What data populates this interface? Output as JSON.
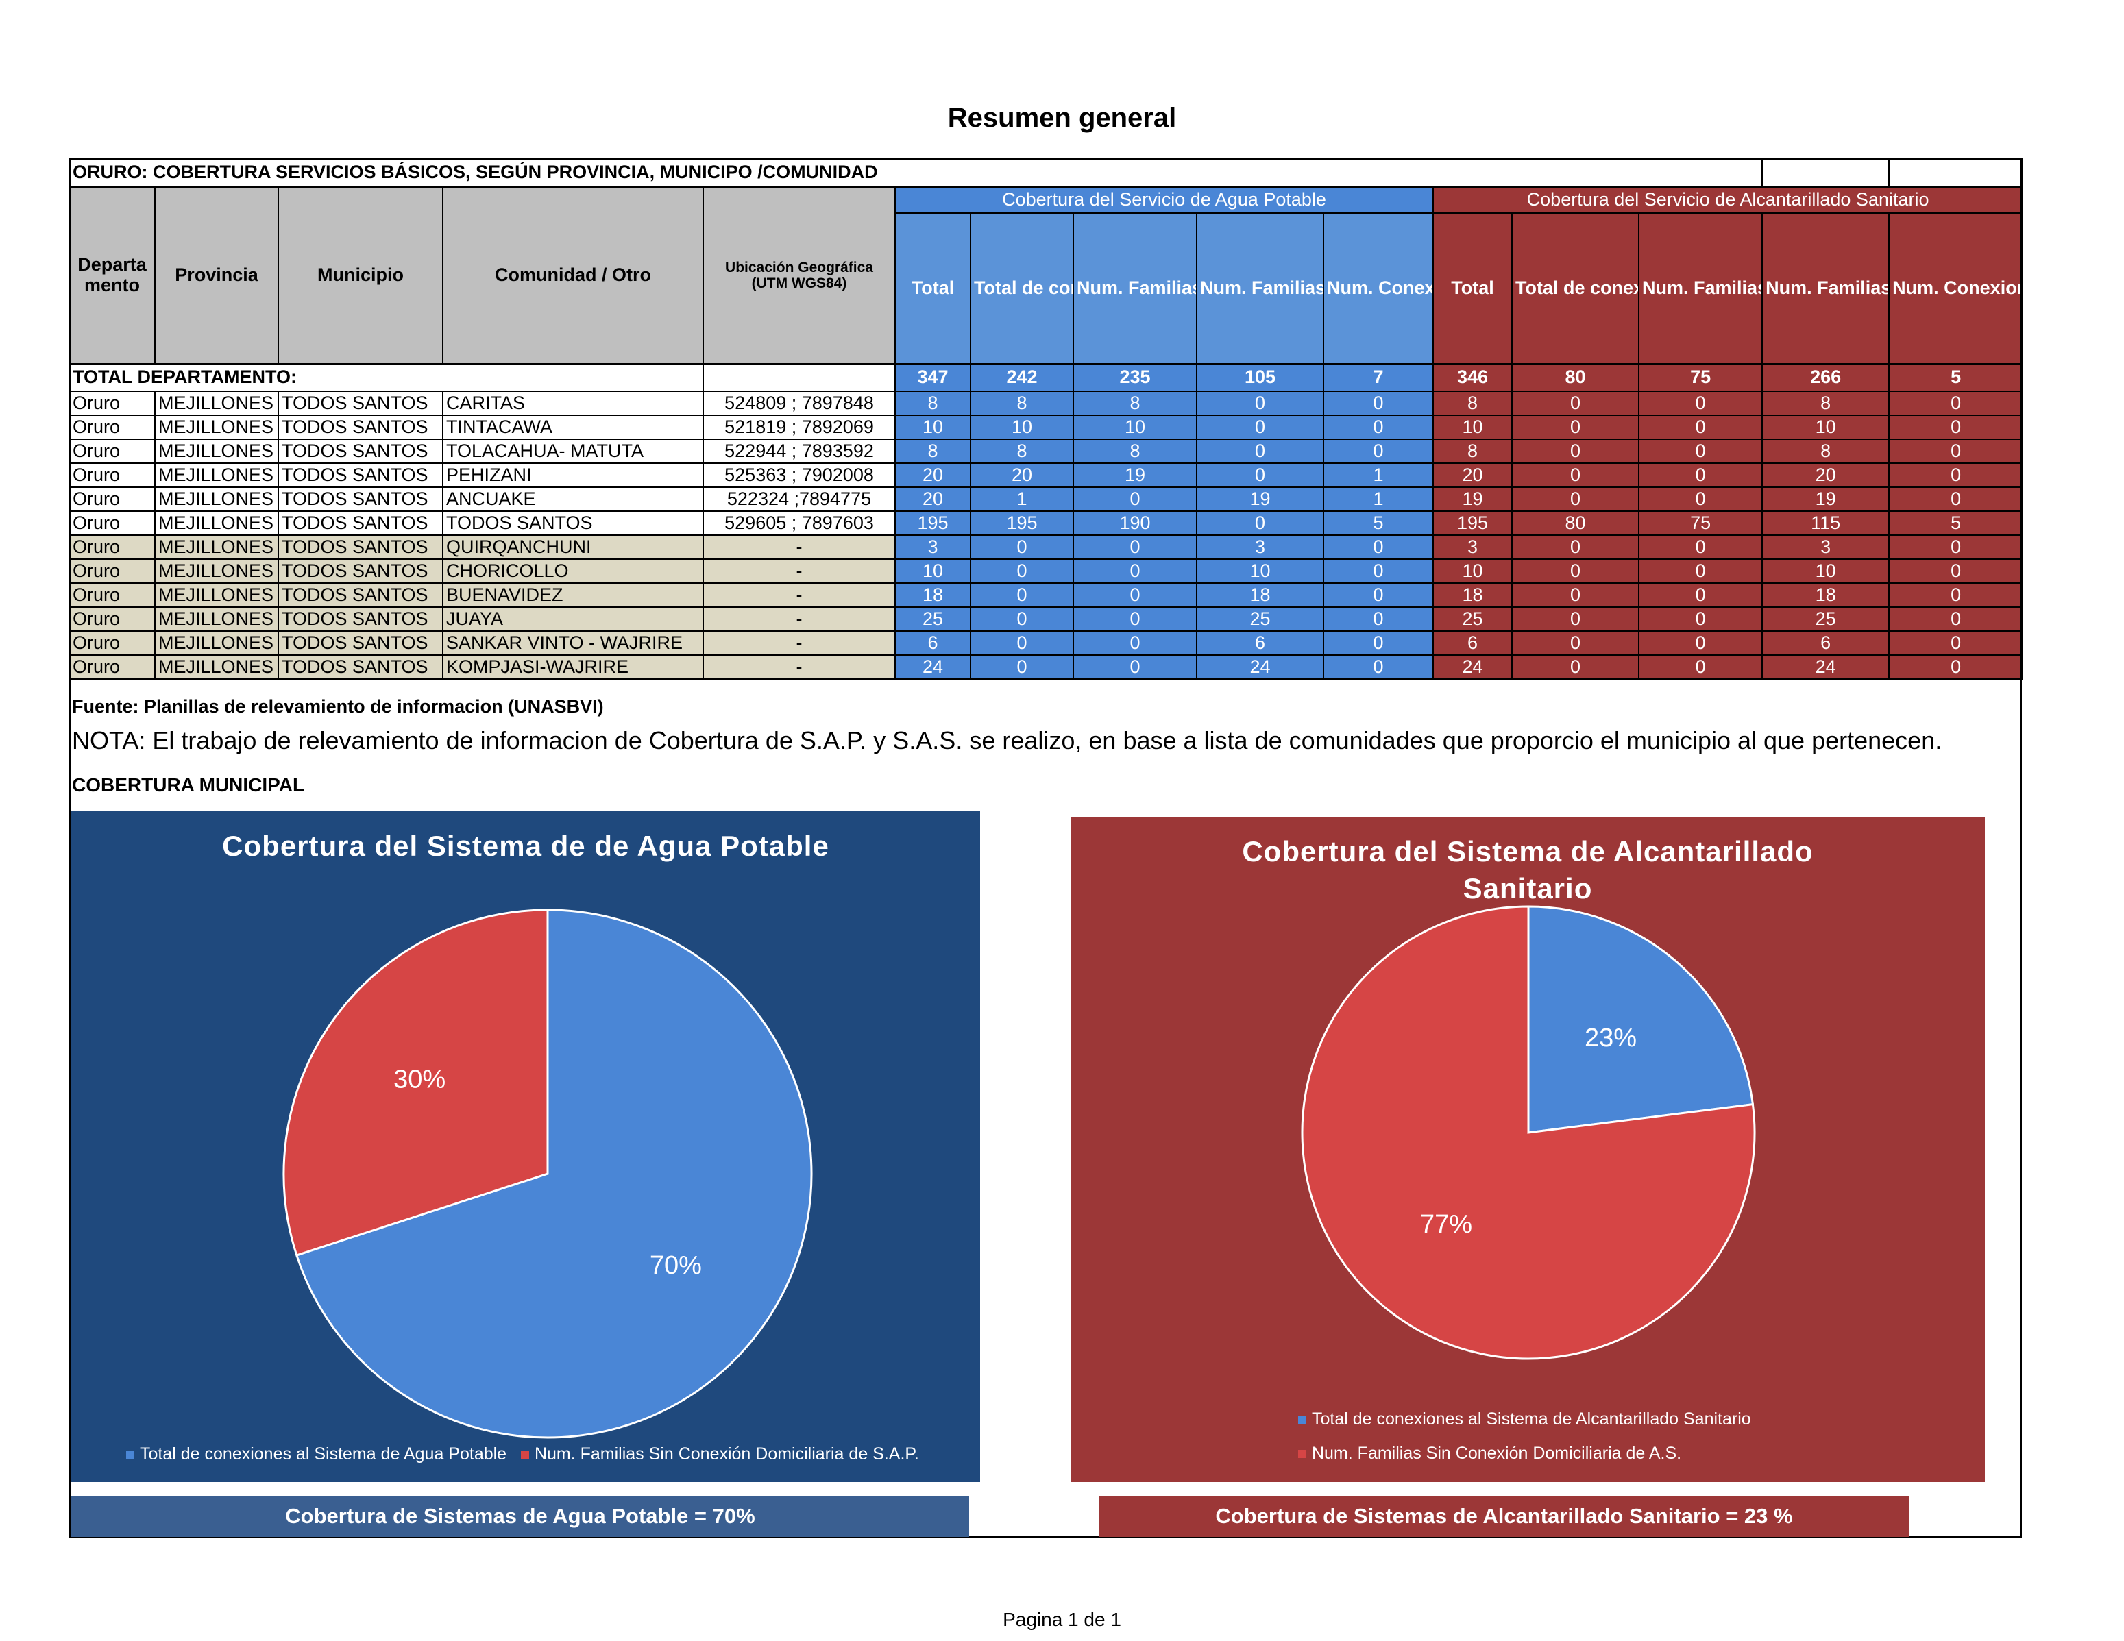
{
  "page_title": "Resumen general",
  "table": {
    "title": "ORURO:  COBERTURA SERVICIOS BÁSICOS, SEGÚN PROVINCIA, MUNICIPO /COMUNIDAD",
    "band_agua": "Cobertura  del Servicio de Agua Potable",
    "band_alc": "Cobertura  del Servicio de Alcantarillado Sanitario",
    "headers": {
      "departamento": "Departa mento",
      "provincia": "Provincia",
      "municipio": "Municipio",
      "comunidad": "Comunidad / Otro",
      "ubicacion": "Ubicación Geográfica (UTM WGS84)",
      "agua_total": "Total",
      "agua_conexiones": "Total de conexiones al Sistema de Agua Potable",
      "agua_con": "Num. Familias Con Conexión Domiciliaria",
      "agua_sin": "Num. Familias Sin Conexión Domiciliaria",
      "agua_publicas": "Num. Conexione s Publicas",
      "alc_total": "Total",
      "alc_conexiones": "Total de conexiones al Sistema de Alcantarillad o Sanitario",
      "alc_con": "Num. Familias Con Conexión Domiciliaria",
      "alc_sin": "Num. Familias Sin Conexión Domiciliaria",
      "alc_publicas": "Num. Conexione s Publicas"
    },
    "total_row": {
      "label": "TOTAL DEPARTAMENTO:",
      "values": [
        "347",
        "242",
        "235",
        "105",
        "7",
        "346",
        "80",
        "75",
        "266",
        "5"
      ]
    },
    "rows": [
      {
        "dep": "Oruro",
        "prov": "MEJILLONES",
        "mun": "TODOS SANTOS",
        "com": "CARITAS",
        "utm": "524809 ; 7897848",
        "vals": [
          "8",
          "8",
          "8",
          "0",
          "0",
          "8",
          "0",
          "0",
          "8",
          "0"
        ],
        "beige": false
      },
      {
        "dep": "Oruro",
        "prov": "MEJILLONES",
        "mun": "TODOS SANTOS",
        "com": "TINTACAWA",
        "utm": "521819 ; 7892069",
        "vals": [
          "10",
          "10",
          "10",
          "0",
          "0",
          "10",
          "0",
          "0",
          "10",
          "0"
        ],
        "beige": false
      },
      {
        "dep": "Oruro",
        "prov": "MEJILLONES",
        "mun": "TODOS SANTOS",
        "com": "TOLACAHUA- MATUTA",
        "utm": "522944 ; 7893592",
        "vals": [
          "8",
          "8",
          "8",
          "0",
          "0",
          "8",
          "0",
          "0",
          "8",
          "0"
        ],
        "beige": false
      },
      {
        "dep": "Oruro",
        "prov": "MEJILLONES",
        "mun": "TODOS SANTOS",
        "com": "PEHIZANI",
        "utm": "525363 ; 7902008",
        "vals": [
          "20",
          "20",
          "19",
          "0",
          "1",
          "20",
          "0",
          "0",
          "20",
          "0"
        ],
        "beige": false
      },
      {
        "dep": "Oruro",
        "prov": "MEJILLONES",
        "mun": "TODOS SANTOS",
        "com": "ANCUAKE",
        "utm": "522324 ;7894775",
        "vals": [
          "20",
          "1",
          "0",
          "19",
          "1",
          "19",
          "0",
          "0",
          "19",
          "0"
        ],
        "beige": false
      },
      {
        "dep": "Oruro",
        "prov": "MEJILLONES",
        "mun": "TODOS SANTOS",
        "com": "TODOS SANTOS",
        "utm": "529605 ; 7897603",
        "vals": [
          "195",
          "195",
          "190",
          "0",
          "5",
          "195",
          "80",
          "75",
          "115",
          "5"
        ],
        "beige": false
      },
      {
        "dep": "Oruro",
        "prov": "MEJILLONES",
        "mun": "TODOS SANTOS",
        "com": "QUIRQANCHUNI",
        "utm": "-",
        "vals": [
          "3",
          "0",
          "0",
          "3",
          "0",
          "3",
          "0",
          "0",
          "3",
          "0"
        ],
        "beige": true
      },
      {
        "dep": "Oruro",
        "prov": "MEJILLONES",
        "mun": "TODOS SANTOS",
        "com": "CHORICOLLO",
        "utm": "-",
        "vals": [
          "10",
          "0",
          "0",
          "10",
          "0",
          "10",
          "0",
          "0",
          "10",
          "0"
        ],
        "beige": true
      },
      {
        "dep": "Oruro",
        "prov": "MEJILLONES",
        "mun": "TODOS SANTOS",
        "com": "BUENAVIDEZ",
        "utm": "-",
        "vals": [
          "18",
          "0",
          "0",
          "18",
          "0",
          "18",
          "0",
          "0",
          "18",
          "0"
        ],
        "beige": true
      },
      {
        "dep": "Oruro",
        "prov": "MEJILLONES",
        "mun": "TODOS SANTOS",
        "com": "JUAYA",
        "utm": "-",
        "vals": [
          "25",
          "0",
          "0",
          "25",
          "0",
          "25",
          "0",
          "0",
          "25",
          "0"
        ],
        "beige": true
      },
      {
        "dep": "Oruro",
        "prov": "MEJILLONES",
        "mun": "TODOS SANTOS",
        "com": "SANKAR VINTO - WAJRIRE",
        "utm": "-",
        "vals": [
          "6",
          "0",
          "0",
          "6",
          "0",
          "6",
          "0",
          "0",
          "6",
          "0"
        ],
        "beige": true
      },
      {
        "dep": "Oruro",
        "prov": "MEJILLONES",
        "mun": "TODOS SANTOS",
        "com": "KOMPJASI-WAJRIRE",
        "utm": "-",
        "vals": [
          "24",
          "0",
          "0",
          "24",
          "0",
          "24",
          "0",
          "0",
          "24",
          "0"
        ],
        "beige": true
      }
    ]
  },
  "source_note": "Fuente: Planillas de relevamiento de informacion (UNASBVI)",
  "nota": "NOTA: El trabajo de relevamiento de informacion de Cobertura de S.A.P. y S.A.S. se realizo, en base a lista de comunidades que proporcio el municipio al que pertenecen.",
  "section_label": "COBERTURA MUNICIPAL",
  "charts": {
    "agua": {
      "title": "Cobertura del Sistema de de Agua Potable",
      "background": "#1f497d",
      "slices": [
        {
          "name": "Total de conexiones al Sistema de Agua Potable",
          "value": 70,
          "label": "70%",
          "color": "#4a86d6"
        },
        {
          "name": "Num.  Familias Sin Conexión Domiciliaria de S.A.P.",
          "value": 30,
          "label": "30%",
          "color": "#d64545"
        }
      ]
    },
    "alc": {
      "title_line1": "Cobertura del Sistema de Alcantarillado",
      "title_line2": "Sanitario",
      "background": "#9c3737",
      "slices": [
        {
          "name": "Total de conexiones al Sistema de Alcantarillado Sanitario",
          "value": 23,
          "label": "23%",
          "color": "#4a86d6"
        },
        {
          "name": "Num.  Familias Sin Conexión Domiciliaria de A.S.",
          "value": 77,
          "label": "77%",
          "color": "#d64545"
        }
      ]
    }
  },
  "chart_data": [
    {
      "type": "pie",
      "title": "Cobertura del Sistema de de Agua Potable",
      "categories": [
        "Total de conexiones al Sistema de Agua Potable",
        "Num.  Familias Sin Conexión Domiciliaria de S.A.P."
      ],
      "values": [
        70,
        30
      ],
      "legend": "bottom"
    },
    {
      "type": "pie",
      "title": "Cobertura del Sistema de Alcantarillado Sanitario",
      "categories": [
        "Total de conexiones al Sistema de Alcantarillado Sanitario",
        "Num.  Familias Sin Conexión Domiciliaria de A.S."
      ],
      "values": [
        23,
        77
      ],
      "legend": "bottom"
    }
  ],
  "summary": {
    "agua": "Cobertura de Sistemas de Agua Potable = 70%",
    "agua_color": "#3a5f91",
    "alc": "Cobertura de Sistemas de Alcantarillado Sanitario = 23 %",
    "alc_color": "#9c3737"
  },
  "footer": "Pagina 1 de 1"
}
